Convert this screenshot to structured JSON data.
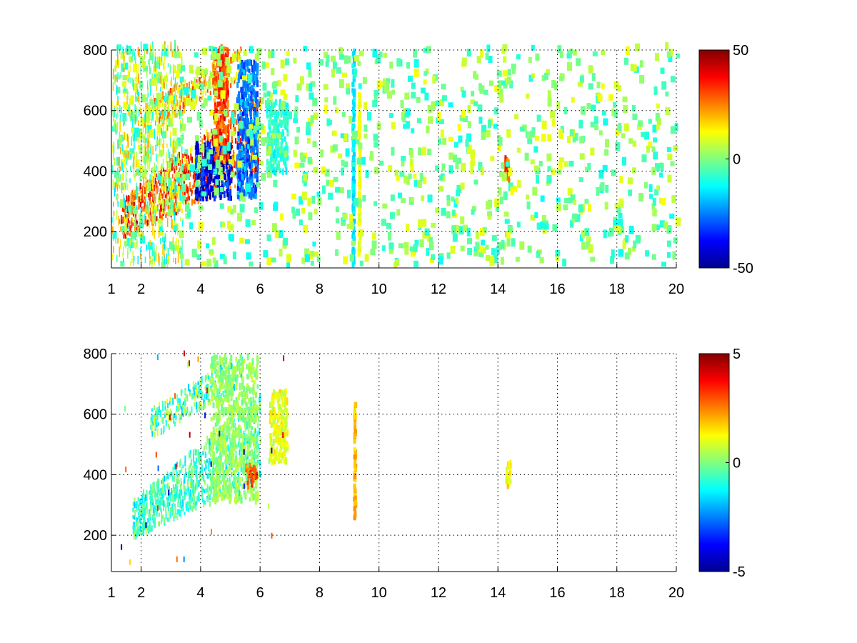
{
  "chart_data": [
    {
      "type": "heatmap",
      "title": "",
      "xlabel": "",
      "ylabel": "",
      "xlim": [
        1,
        20
      ],
      "ylim": [
        80,
        800
      ],
      "x_ticks": [
        1,
        2,
        4,
        6,
        8,
        10,
        12,
        14,
        16,
        18,
        20
      ],
      "y_ticks": [
        200,
        400,
        600,
        800
      ],
      "grid": true,
      "colormap": "jet",
      "color_range": [
        -50,
        50
      ],
      "colorbar_ticks": [
        -50,
        0,
        50
      ],
      "features": [
        {
          "kind": "ridge",
          "x_range": [
            1.3,
            6.0
          ],
          "y_at_start": 230,
          "y_at_end": 520,
          "value": 40
        },
        {
          "kind": "blob",
          "x": [
            3.8,
            5.0
          ],
          "y": [
            300,
            480
          ],
          "value": -45
        },
        {
          "kind": "blob",
          "x": [
            5.2,
            5.9
          ],
          "y": [
            300,
            750
          ],
          "value": -30
        },
        {
          "kind": "blob",
          "x": [
            4.4,
            4.9
          ],
          "y": [
            420,
            800
          ],
          "value": 35
        },
        {
          "kind": "blob",
          "x": [
            6.2,
            6.9
          ],
          "y": [
            380,
            620
          ],
          "value": -10
        },
        {
          "kind": "stripe",
          "x": 9.1,
          "y": [
            80,
            800
          ],
          "value": -15
        },
        {
          "kind": "stripe",
          "x": 9.3,
          "y": [
            100,
            650
          ],
          "value": 12
        },
        {
          "kind": "blob",
          "x": [
            14.2,
            14.35
          ],
          "y": [
            350,
            430
          ],
          "value": 35
        }
      ]
    },
    {
      "type": "heatmap",
      "title": "",
      "xlabel": "",
      "ylabel": "",
      "xlim": [
        1,
        20
      ],
      "ylim": [
        80,
        800
      ],
      "x_ticks": [
        1,
        2,
        4,
        6,
        8,
        10,
        12,
        14,
        16,
        18,
        20
      ],
      "y_ticks": [
        200,
        400,
        600,
        800
      ],
      "grid": true,
      "colormap": "jet",
      "color_range": [
        -5,
        5
      ],
      "colorbar_ticks": [
        -5,
        0,
        5
      ],
      "features": [
        {
          "kind": "ridge",
          "x_range": [
            1.7,
            6.0
          ],
          "y_at_start": 240,
          "y_at_end": 520,
          "value": -0.8
        },
        {
          "kind": "blob",
          "x": [
            4.3,
            5.9
          ],
          "y": [
            300,
            780
          ],
          "value": 0.3
        },
        {
          "kind": "blob",
          "x": [
            5.5,
            5.85
          ],
          "y": [
            350,
            420
          ],
          "value": 3.5
        },
        {
          "kind": "blob",
          "x": [
            6.3,
            6.9
          ],
          "y": [
            430,
            670
          ],
          "value": 1.2
        },
        {
          "kind": "stripe",
          "x": 9.15,
          "y": [
            240,
            630
          ],
          "value": 2.0
        },
        {
          "kind": "blob",
          "x": [
            14.25,
            14.4
          ],
          "y": [
            350,
            430
          ],
          "value": 1.5
        }
      ]
    }
  ]
}
